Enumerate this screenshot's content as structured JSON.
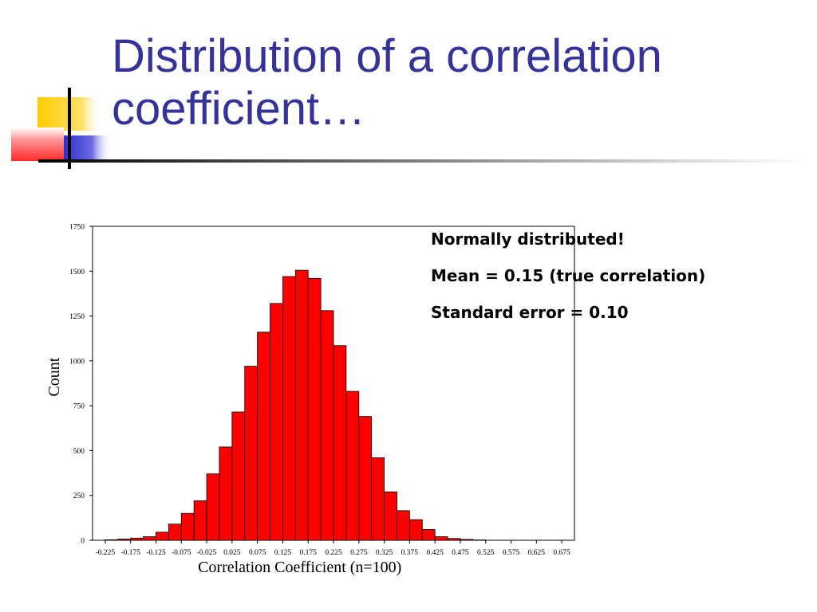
{
  "slide": {
    "title": "Distribution of a correlation\ncoefficient…"
  },
  "notes": [
    "Normally distributed!",
    "Mean = 0.15 (true correlation)",
    "Standard error = 0.10"
  ],
  "colors": {
    "title": "#333399",
    "bar_fill": "#ff0000",
    "bar_stroke": "#000000",
    "deco_yellow": "#ffcc00",
    "deco_red": "#ff3333",
    "deco_blue": "#3333cc"
  },
  "chart_data": {
    "type": "bar",
    "title": "",
    "xlabel": "Correlation Coefficient (n=100)",
    "ylabel": "Count",
    "ylim": [
      0,
      1750
    ],
    "yticks": [
      0,
      250,
      500,
      750,
      1000,
      1250,
      1500,
      1750
    ],
    "xlim": [
      -0.25,
      0.7
    ],
    "xticks": [
      "-0.225",
      "-0.175",
      "-0.125",
      "-0.075",
      "-0.025",
      "0.025",
      "0.075",
      "0.125",
      "0.175",
      "0.225",
      "0.275",
      "0.325",
      "0.375",
      "0.425",
      "0.475",
      "0.525",
      "0.575",
      "0.625",
      "0.675"
    ],
    "bin_width": 0.025,
    "grid": false,
    "legend": "none",
    "bars": [
      {
        "x": -0.2125,
        "value": 3
      },
      {
        "x": -0.1875,
        "value": 7
      },
      {
        "x": -0.1625,
        "value": 12
      },
      {
        "x": -0.1375,
        "value": 20
      },
      {
        "x": -0.1125,
        "value": 45
      },
      {
        "x": -0.0875,
        "value": 90
      },
      {
        "x": -0.0625,
        "value": 150
      },
      {
        "x": -0.0375,
        "value": 220
      },
      {
        "x": -0.0125,
        "value": 370
      },
      {
        "x": 0.0125,
        "value": 520
      },
      {
        "x": 0.0375,
        "value": 715
      },
      {
        "x": 0.0625,
        "value": 970
      },
      {
        "x": 0.0875,
        "value": 1160
      },
      {
        "x": 0.1125,
        "value": 1320
      },
      {
        "x": 0.1375,
        "value": 1470
      },
      {
        "x": 0.1625,
        "value": 1505
      },
      {
        "x": 0.1875,
        "value": 1460
      },
      {
        "x": 0.2125,
        "value": 1280
      },
      {
        "x": 0.2375,
        "value": 1085
      },
      {
        "x": 0.2625,
        "value": 830
      },
      {
        "x": 0.2875,
        "value": 690
      },
      {
        "x": 0.3125,
        "value": 460
      },
      {
        "x": 0.3375,
        "value": 270
      },
      {
        "x": 0.3625,
        "value": 165
      },
      {
        "x": 0.3875,
        "value": 115
      },
      {
        "x": 0.4125,
        "value": 60
      },
      {
        "x": 0.4375,
        "value": 20
      },
      {
        "x": 0.4625,
        "value": 10
      },
      {
        "x": 0.4875,
        "value": 5
      },
      {
        "x": 0.5125,
        "value": 2
      }
    ]
  }
}
